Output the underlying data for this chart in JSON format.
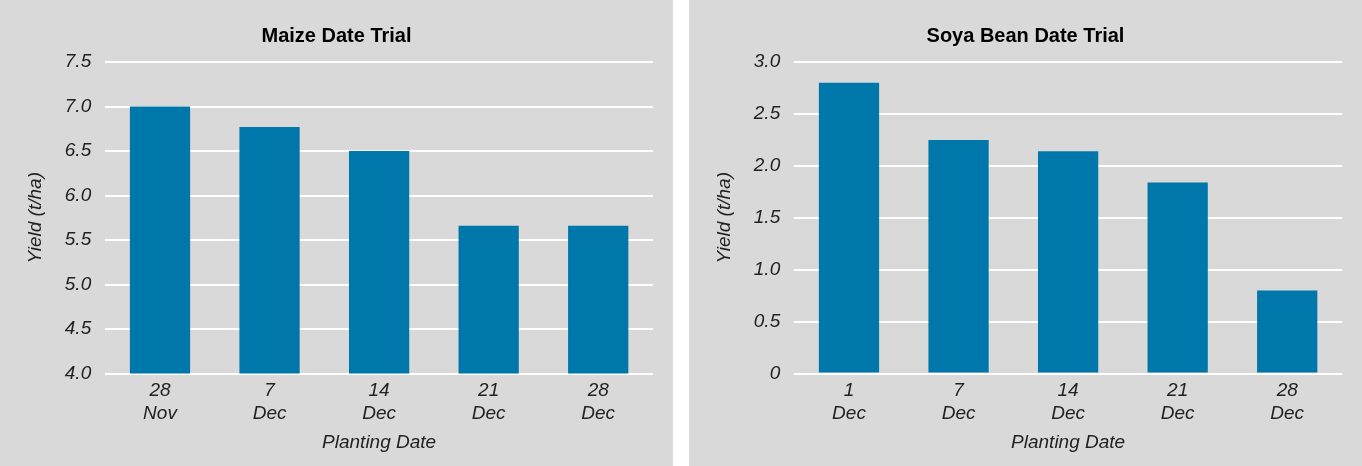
{
  "chart_data": [
    {
      "type": "bar",
      "title": "Maize Date Trial",
      "xlabel": "Planting Date",
      "ylabel": "Yield (t/ha)",
      "categories": [
        "28 Nov",
        "7 Dec",
        "14 Dec",
        "21 Dec",
        "28 Dec"
      ],
      "values": [
        7.0,
        6.77,
        6.5,
        5.66,
        5.66
      ],
      "color": "#0077aa",
      "ylim": [
        4,
        7.5
      ],
      "yticks": [
        {
          "value": 4,
          "label": "4.0"
        },
        4.5,
        {
          "value": 5,
          "label": "5.0"
        },
        5.5,
        {
          "value": 6,
          "label": "6.0"
        },
        6.5,
        {
          "value": 7,
          "label": "7.0"
        },
        7.5
      ],
      "grid": "y"
    },
    {
      "type": "bar",
      "title": "Soya Bean Date Trial",
      "xlabel": "Planting Date",
      "ylabel": "Yield (t/ha)",
      "categories": [
        "1 Dec",
        "7 Dec",
        "14 Dec",
        "21 Dec",
        "28 Dec"
      ],
      "values": [
        2.8,
        2.25,
        2.14,
        1.84,
        0.8
      ],
      "color": "#0077aa",
      "ylim": [
        0,
        3
      ],
      "yticks": [
        0,
        0.5,
        {
          "value": 1,
          "label": "1.0"
        },
        1.5,
        {
          "value": 2,
          "label": "2.0"
        },
        2.5,
        {
          "value": 3,
          "label": "3.0"
        }
      ],
      "grid": "y"
    }
  ]
}
